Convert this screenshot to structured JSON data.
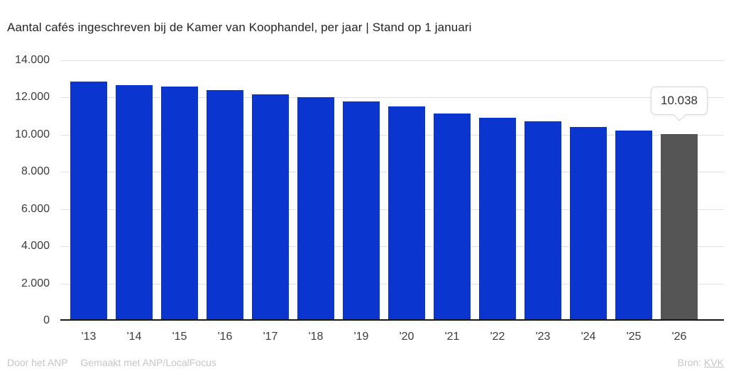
{
  "title": "Aantal cafés ingeschreven bij de Kamer van Koophandel, per jaar | Stand op 1 januari",
  "chart_data": {
    "type": "bar",
    "categories": [
      "'13",
      "'14",
      "'15",
      "'16",
      "'17",
      "'18",
      "'19",
      "'20",
      "'21",
      "'22",
      "'23",
      "'24",
      "'25",
      "'26"
    ],
    "values": [
      12840,
      12670,
      12570,
      12400,
      12170,
      12000,
      11770,
      11510,
      11150,
      10920,
      10730,
      10400,
      10210,
      10038
    ],
    "title": "Aantal cafés ingeschreven bij de Kamer van Koophandel, per jaar | Stand op 1 januari",
    "xlabel": "",
    "ylabel": "",
    "ylim": [
      0,
      14000
    ],
    "ytick_labels": [
      "14.000",
      "12.000",
      "10.000",
      "8.000",
      "6.000",
      "4.000",
      "2.000",
      "0"
    ],
    "grid": true,
    "legend": false,
    "highlight_index": 13,
    "colors": {
      "bar": "#0B35CF",
      "highlight_bar": "#555555"
    }
  },
  "tooltip": {
    "value": "10.038",
    "target_category": "'26"
  },
  "footer": {
    "credit": "Door het ANP",
    "tool": "Gemaakt met ANP/LocalFocus",
    "source_label": "Bron:",
    "source_link": "KVK"
  }
}
